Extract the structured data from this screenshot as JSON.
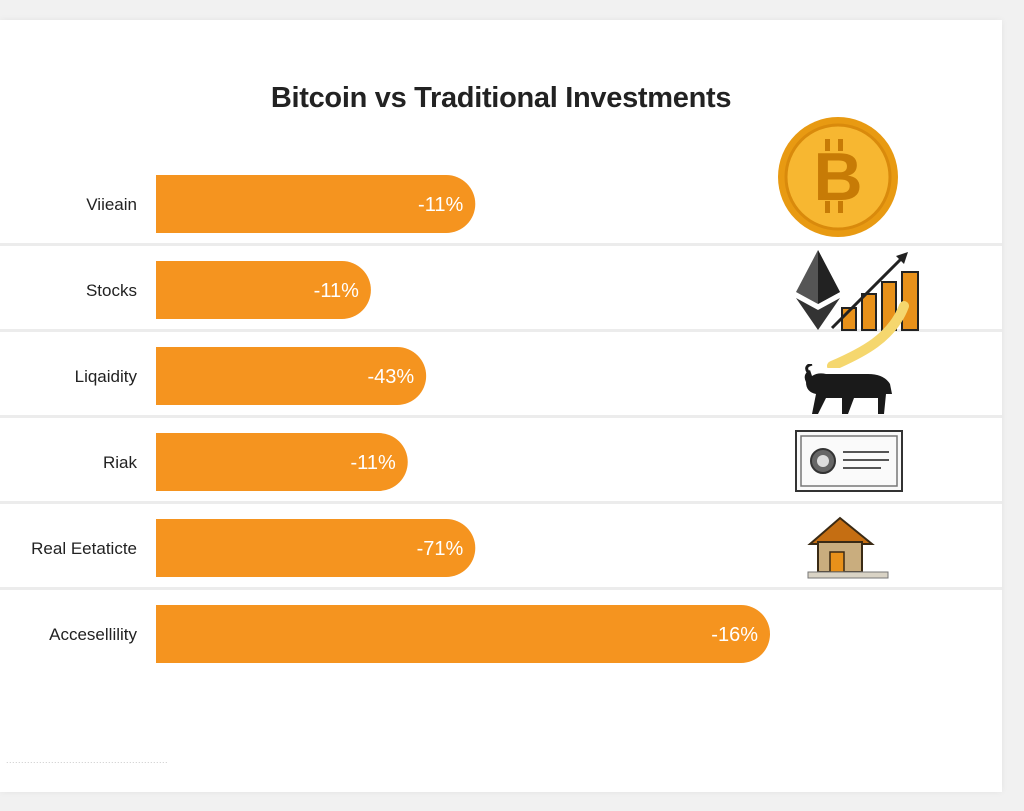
{
  "chart_data": {
    "type": "bar",
    "orientation": "horizontal",
    "title": "Bitcoin vs Traditional Investments",
    "categories": [
      "Viieain",
      "Stocks",
      "Liqaidity",
      "Riak",
      "Real Eetaticte",
      "Accesellility"
    ],
    "values": [
      -11,
      -11,
      -43,
      -11,
      -71,
      -16
    ],
    "value_labels": [
      "-11%",
      "-11%",
      "-43%",
      "-11%",
      "-71%",
      "-16%"
    ],
    "bar_extent": [
      0.52,
      0.35,
      0.44,
      0.41,
      0.52,
      1.0
    ],
    "grid": false,
    "legend": "none",
    "colors": {
      "bar": "#f5941f",
      "label_text": "#ffffff",
      "separator": "#ececec"
    }
  },
  "icons": [
    "bitcoin-coin-icon",
    "ethereum-growth-chart-icon",
    "bull-icon",
    "certificate-icon",
    "house-icon"
  ],
  "footer": "......................................................"
}
